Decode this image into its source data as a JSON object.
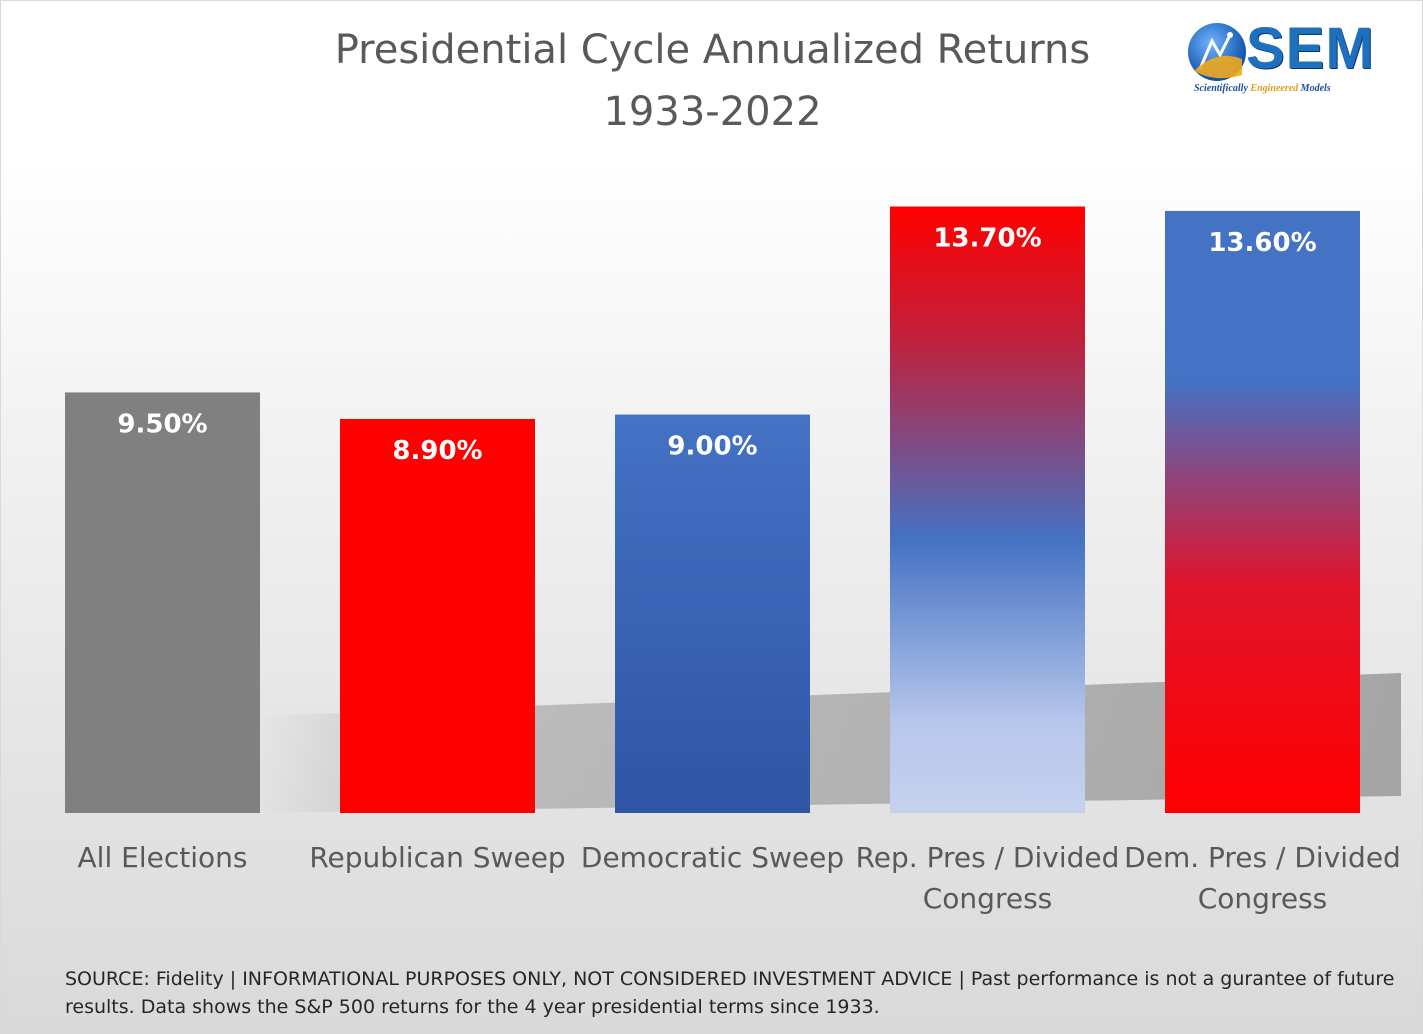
{
  "chart_data": {
    "type": "bar",
    "title": "Presidential Cycle Annualized Returns",
    "subtitle": "1933-2022",
    "categories": [
      [
        "All Elections"
      ],
      [
        "Republican Sweep"
      ],
      [
        "Democratic Sweep"
      ],
      [
        "Rep. Pres / Divided",
        "Congress"
      ],
      [
        "Dem. Pres / Divided",
        "Congress"
      ]
    ],
    "values": [
      9.5,
      8.9,
      9.0,
      13.7,
      13.6
    ],
    "data_labels": [
      "9.50%",
      "8.90%",
      "9.00%",
      "13.70%",
      "13.60%"
    ],
    "bar_styles": [
      "gray",
      "red",
      "blue",
      "red-to-blue-fade",
      "blue-to-red"
    ],
    "colors": {
      "gray": "#808080",
      "red": "#ff0000",
      "blue": "#4472c4",
      "dark_blue": "#2f55a4",
      "light_blue": "#c5d1ee"
    },
    "ylim": [
      0,
      15
    ],
    "xlabel": "",
    "ylabel": "",
    "grid": false
  },
  "logo": {
    "name": "SEM",
    "tagline_start": "Scientifically ",
    "tagline_highlight": "Engineered",
    "tagline_end": " Models"
  },
  "source_note": "SOURCE: Fidelity | INFORMATIONAL PURPOSES ONLY, NOT CONSIDERED INVESTMENT ADVICE | Past performance is not a gurantee of future results. Data shows the S&P 500 returns for the 4 year presidential terms since 1933."
}
